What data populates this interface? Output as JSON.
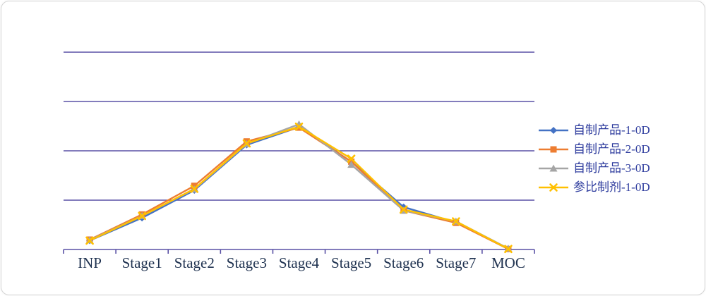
{
  "chart_data": {
    "type": "line",
    "title": "",
    "xlabel": "",
    "ylabel": "",
    "categories": [
      "INP",
      "Stage1",
      "Stage2",
      "Stage3",
      "Stage4",
      "Stage5",
      "Stage6",
      "Stage7",
      "MOC"
    ],
    "series": [
      {
        "name": "自制产品-1-0D",
        "color": "#4472C4",
        "marker": "diamond",
        "values": [
          0.9,
          3.2,
          6.0,
          10.6,
          12.4,
          8.9,
          4.3,
          2.75,
          0.05
        ]
      },
      {
        "name": "自制产品-2-0D",
        "color": "#ED7D31",
        "marker": "square",
        "values": [
          1.0,
          3.55,
          6.45,
          10.95,
          12.35,
          8.9,
          3.95,
          2.7,
          0.05
        ]
      },
      {
        "name": "自制产品-3-0D",
        "color": "#A5A5A5",
        "marker": "triangle",
        "values": [
          0.95,
          3.4,
          6.1,
          10.7,
          12.7,
          8.6,
          3.95,
          2.85,
          0.1
        ]
      },
      {
        "name": "参比制剂-1-0D",
        "color": "#FFC000",
        "marker": "x",
        "values": [
          0.9,
          3.4,
          6.15,
          10.75,
          12.45,
          9.2,
          4.05,
          2.85,
          0.05
        ]
      }
    ],
    "ylim": [
      0,
      20
    ],
    "grid_step": 5,
    "grid_on": true,
    "y_axis_labels_visible": false,
    "legend_position": "right",
    "grid_color": "#5A51A5",
    "axis_label_color": "#1F3250",
    "legend_text_color": "#2E3C9E"
  }
}
